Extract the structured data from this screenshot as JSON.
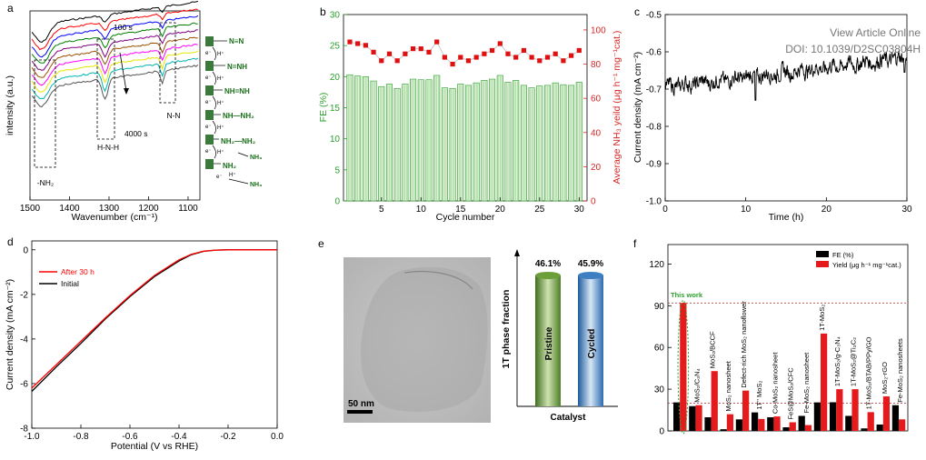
{
  "watermark": {
    "line1": "View Article Online",
    "line2": "DOI: 10.1039/D2SC03804H"
  },
  "chart_data": [
    {
      "panel": "a",
      "type": "line",
      "xlabel": "Wavenumber (cm⁻¹)",
      "ylabel": "intensity (a.u.)",
      "xticks": [
        "1500",
        "1400",
        "1300",
        "1200",
        "1100"
      ],
      "xlim": [
        1500,
        1070
      ],
      "time_start": "100 s",
      "time_end": "4000 s",
      "band_labels": [
        "-NH₂",
        "H-N-H",
        "N-N"
      ],
      "series_colors": [
        "#000000",
        "#ff0000",
        "#0000ff",
        "#008000",
        "#800080",
        "#9a4f00",
        "#ff00ff",
        "#e6e600",
        "#00b3b3",
        "#555555"
      ],
      "mechanism": [
        "N≡N",
        "N=NH",
        "NH=NH",
        "NH—NH₂",
        "NH₂—NH₂",
        "NH₂",
        "NH₃",
        "NH₃"
      ],
      "mech_symbols": {
        "electron": "e⁻",
        "proton": "H⁺"
      }
    },
    {
      "panel": "b",
      "type": "bar",
      "xlabel": "Cycle number",
      "ylabel_left": "FE (%)",
      "ylabel_right": "Average NH₃ yeild (μg h⁻¹ mg⁻¹cat.)",
      "xticks": [
        "5",
        "10",
        "15",
        "20",
        "25",
        "30"
      ],
      "yticks_left": [
        "0",
        "5",
        "10",
        "15",
        "20",
        "25",
        "30"
      ],
      "yticks_right": [
        "0",
        "20",
        "40",
        "60",
        "80",
        "100"
      ],
      "ylim_left": [
        0,
        30
      ],
      "ylim_right": [
        0,
        109
      ],
      "cycles": [
        1,
        2,
        3,
        4,
        5,
        6,
        7,
        8,
        9,
        10,
        11,
        12,
        13,
        14,
        15,
        16,
        17,
        18,
        19,
        20,
        21,
        22,
        23,
        24,
        25,
        26,
        27,
        28,
        29,
        30
      ],
      "fe": [
        20.3,
        20.1,
        20.0,
        19.3,
        18.4,
        18.8,
        18.1,
        18.8,
        19.6,
        19.5,
        19.5,
        20.2,
        18.2,
        18.1,
        18.8,
        18.6,
        19.0,
        19.4,
        19.6,
        20.2,
        19.1,
        19.4,
        18.6,
        18.2,
        18.5,
        18.6,
        19.0,
        18.7,
        18.6,
        19.1
      ],
      "yield": [
        93,
        92,
        91,
        87,
        82,
        86,
        82,
        86,
        89,
        89,
        87,
        93,
        84,
        80,
        84,
        82,
        84,
        86,
        88,
        92,
        86,
        84,
        88,
        84,
        82,
        84,
        86,
        82,
        85,
        88
      ]
    },
    {
      "panel": "c",
      "type": "line",
      "xlabel": "Time (h)",
      "ylabel": "Current density (mA cm⁻²)",
      "xticks": [
        "0",
        "10",
        "20",
        "30"
      ],
      "yticks": [
        "-0.5",
        "-0.6",
        "-0.7",
        "-0.8",
        "-0.9",
        "-1.0"
      ],
      "xlim": [
        0,
        30
      ],
      "ylim": [
        -1.0,
        -0.5
      ],
      "trend_start": -0.695,
      "trend_end": -0.615
    },
    {
      "panel": "d",
      "type": "line",
      "xlabel": "Potential (V vs RHE)",
      "ylabel": "Current density (mA cm⁻²)",
      "xticks": [
        "-1.0",
        "-0.8",
        "-0.6",
        "-0.4",
        "-0.2",
        "0.0"
      ],
      "yticks": [
        "0",
        "-2",
        "-4",
        "-6",
        "-8"
      ],
      "xlim": [
        -1.0,
        0.0
      ],
      "ylim": [
        -8,
        0.4
      ],
      "series": [
        {
          "name": "After 30 h",
          "color": "#ff0000",
          "x": [
            -1.0,
            -0.9,
            -0.8,
            -0.7,
            -0.6,
            -0.5,
            -0.45,
            -0.4,
            -0.35,
            -0.3,
            -0.25,
            -0.2,
            -0.1,
            0.0
          ],
          "y": [
            -6.2,
            -5.15,
            -4.1,
            -3.05,
            -2.05,
            -1.15,
            -0.8,
            -0.45,
            -0.2,
            -0.06,
            -0.01,
            0.0,
            0.0,
            0.0
          ]
        },
        {
          "name": "Initial",
          "color": "#000000",
          "x": [
            -1.0,
            -0.9,
            -0.8,
            -0.7,
            -0.6,
            -0.5,
            -0.45,
            -0.4,
            -0.35,
            -0.3,
            -0.25,
            -0.2,
            -0.1,
            0.0
          ],
          "y": [
            -6.35,
            -5.25,
            -4.2,
            -3.1,
            -2.1,
            -1.2,
            -0.85,
            -0.5,
            -0.22,
            -0.07,
            -0.01,
            0.0,
            0.0,
            0.0
          ]
        }
      ]
    },
    {
      "panel": "e",
      "type": "bar",
      "ylabel": "1T phase fraction",
      "xlabel": "Catalyst",
      "categories": [
        "Pristine",
        "Cycled"
      ],
      "values": [
        46.1,
        45.9
      ],
      "value_labels": [
        "46.1%",
        "45.9%"
      ],
      "colors": [
        "#6e9e3a",
        "#3e7fc2"
      ],
      "scale_bar": "50 nm"
    },
    {
      "panel": "f",
      "type": "bar",
      "yticks": [
        "0",
        "30",
        "60",
        "90",
        "120"
      ],
      "ylim": [
        0,
        120
      ],
      "legend": [
        "FE (%)",
        "Yield (μg h⁻¹ mg⁻¹cat.)"
      ],
      "annotation": "This work",
      "ref_lines": [
        92,
        20
      ],
      "categories": [
        "This work",
        "MoS₂/C₃N₄",
        "MoS₂/BCCF",
        "MoS₂ nanosheet",
        "Defect-rich MoS₂ nanoflower",
        "1T'' MoS₂",
        "Co-MoS₂ nanosheet",
        "FeS@MoS₂/CFC",
        "Fe-MoS₂ nanosheet",
        "1T-MoS₂",
        "1T-MoS₂/g-C₃N₄",
        "1T-MoS₂@Ti₃C₂",
        "1T-MoS₂/BTAB/PPy/GO",
        "MoS₂-rGO",
        "Fe-MoS₂ nanosheets"
      ],
      "fe": [
        20.5,
        17.8,
        9.8,
        1.2,
        8.3,
        13.3,
        9.8,
        2.6,
        10.8,
        20.5,
        20.6,
        10.8,
        1.8,
        4.6,
        18.5
      ],
      "yield": [
        92,
        18.5,
        43,
        12,
        29,
        8.6,
        10.4,
        6.2,
        4.2,
        70,
        30,
        30,
        13.5,
        24.8,
        8.3
      ],
      "colors": {
        "fe": "#000000",
        "yield": "#e41a1c"
      }
    }
  ]
}
